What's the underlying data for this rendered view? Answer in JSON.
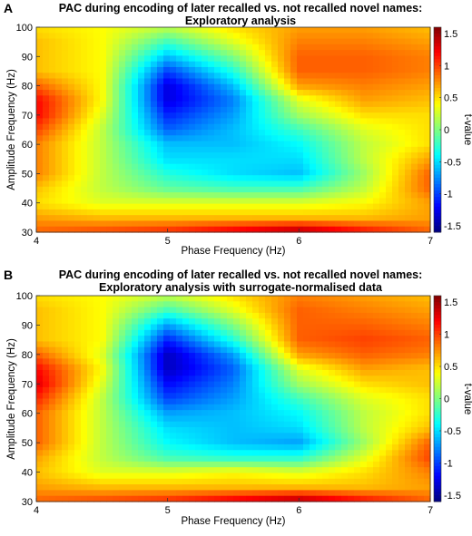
{
  "panels": [
    {
      "letter": "A",
      "title_line1": "PAC during encoding of later recalled vs. not recalled novel names:",
      "title_line2": "Exploratory analysis"
    },
    {
      "letter": "B",
      "title_line1": "PAC during encoding of later recalled vs. not recalled novel names:",
      "title_line2": "Exploratory analysis with surrogate-normalised data"
    }
  ],
  "colormap": "jet",
  "chart_data": [
    {
      "type": "heatmap",
      "title": "PAC during encoding of later recalled vs. not recalled novel names: Exploratory analysis",
      "xlabel": "Phase Frequency (Hz)",
      "ylabel": "Amplitude Frequency (Hz)",
      "colorbar_label": "t-value",
      "xlim": [
        4,
        7
      ],
      "ylim": [
        30,
        100
      ],
      "clim": [
        -1.6,
        1.6
      ],
      "x_ticks": [
        "4",
        "5",
        "6",
        "7"
      ],
      "y_ticks": [
        "30",
        "40",
        "50",
        "60",
        "70",
        "80",
        "90",
        "100"
      ],
      "colorbar_ticks": [
        "-1.5",
        "-1",
        "-0.5",
        "0",
        "0.5",
        "1",
        "1.5"
      ],
      "x": [
        4.0,
        4.5,
        5.0,
        5.5,
        6.0,
        6.5,
        7.0
      ],
      "y": [
        30,
        35,
        40,
        45,
        50,
        55,
        60,
        65,
        70,
        75,
        80,
        85,
        90,
        95,
        100
      ],
      "z": [
        [
          0.9,
          1.0,
          1.1,
          1.3,
          1.5,
          1.2,
          0.9
        ],
        [
          0.7,
          0.6,
          0.6,
          0.6,
          0.6,
          0.6,
          0.7
        ],
        [
          0.5,
          0.3,
          0.3,
          0.3,
          0.3,
          0.4,
          0.7
        ],
        [
          0.6,
          0.2,
          -0.1,
          -0.2,
          -0.2,
          0.2,
          0.9
        ],
        [
          0.8,
          0.2,
          -0.3,
          -0.5,
          -0.6,
          0.1,
          0.9
        ],
        [
          0.8,
          0.2,
          -0.5,
          -0.5,
          -0.5,
          0.2,
          0.7
        ],
        [
          0.8,
          0.2,
          -0.6,
          -0.6,
          -0.4,
          0.2,
          0.5
        ],
        [
          1.0,
          0.2,
          -0.9,
          -0.6,
          -0.2,
          0.3,
          0.5
        ],
        [
          1.2,
          0.3,
          -1.1,
          -0.7,
          0.1,
          0.5,
          0.5
        ],
        [
          1.2,
          0.4,
          -1.3,
          -0.8,
          0.3,
          0.7,
          0.6
        ],
        [
          0.9,
          0.4,
          -1.3,
          -0.6,
          0.7,
          0.8,
          0.7
        ],
        [
          0.6,
          0.4,
          -1.0,
          -0.3,
          0.9,
          0.9,
          0.8
        ],
        [
          0.6,
          0.4,
          -0.6,
          0.0,
          0.9,
          0.9,
          0.8
        ],
        [
          0.6,
          0.4,
          -0.2,
          0.3,
          0.8,
          0.8,
          0.7
        ],
        [
          0.5,
          0.4,
          0.2,
          0.5,
          0.7,
          0.7,
          0.6
        ]
      ]
    },
    {
      "type": "heatmap",
      "title": "PAC during encoding of later recalled vs. not recalled novel names: Exploratory analysis with surrogate-normalised data",
      "xlabel": "Phase Frequency (Hz)",
      "ylabel": "Amplitude Frequency (Hz)",
      "colorbar_label": "t-value",
      "xlim": [
        4,
        7
      ],
      "ylim": [
        30,
        100
      ],
      "clim": [
        -1.6,
        1.6
      ],
      "x_ticks": [
        "4",
        "5",
        "6",
        "7"
      ],
      "y_ticks": [
        "30",
        "40",
        "50",
        "60",
        "70",
        "80",
        "90",
        "100"
      ],
      "colorbar_ticks": [
        "-1.5",
        "-1",
        "-0.5",
        "0",
        "0.5",
        "1",
        "1.5"
      ],
      "x": [
        4.0,
        4.5,
        5.0,
        5.5,
        6.0,
        6.5,
        7.0
      ],
      "y": [
        30,
        35,
        40,
        45,
        50,
        55,
        60,
        65,
        70,
        75,
        80,
        85,
        90,
        95,
        100
      ],
      "z": [
        [
          0.9,
          1.0,
          1.1,
          1.3,
          1.5,
          1.2,
          0.9
        ],
        [
          0.7,
          0.6,
          0.6,
          0.6,
          0.6,
          0.6,
          0.7
        ],
        [
          0.6,
          0.3,
          0.3,
          0.4,
          0.3,
          0.5,
          0.8
        ],
        [
          0.7,
          0.2,
          -0.2,
          -0.3,
          -0.3,
          0.3,
          1.0
        ],
        [
          0.9,
          0.2,
          -0.4,
          -0.6,
          -0.7,
          0.1,
          0.9
        ],
        [
          0.9,
          0.2,
          -0.5,
          -0.6,
          -0.5,
          0.2,
          0.6
        ],
        [
          0.9,
          0.2,
          -0.7,
          -0.6,
          -0.4,
          0.2,
          0.5
        ],
        [
          1.1,
          0.2,
          -1.0,
          -0.7,
          -0.2,
          0.3,
          0.5
        ],
        [
          1.3,
          0.3,
          -1.2,
          -0.8,
          0.1,
          0.5,
          0.6
        ],
        [
          1.2,
          0.4,
          -1.4,
          -0.9,
          0.3,
          0.7,
          0.6
        ],
        [
          0.9,
          0.3,
          -1.4,
          -0.7,
          0.7,
          0.9,
          0.8
        ],
        [
          0.6,
          0.4,
          -1.1,
          -0.3,
          0.9,
          1.0,
          0.9
        ],
        [
          0.6,
          0.4,
          -0.7,
          0.0,
          0.9,
          0.9,
          0.8
        ],
        [
          0.6,
          0.4,
          -0.2,
          0.3,
          0.9,
          0.8,
          0.7
        ],
        [
          0.5,
          0.4,
          0.2,
          0.5,
          0.8,
          0.7,
          0.6
        ]
      ]
    }
  ]
}
